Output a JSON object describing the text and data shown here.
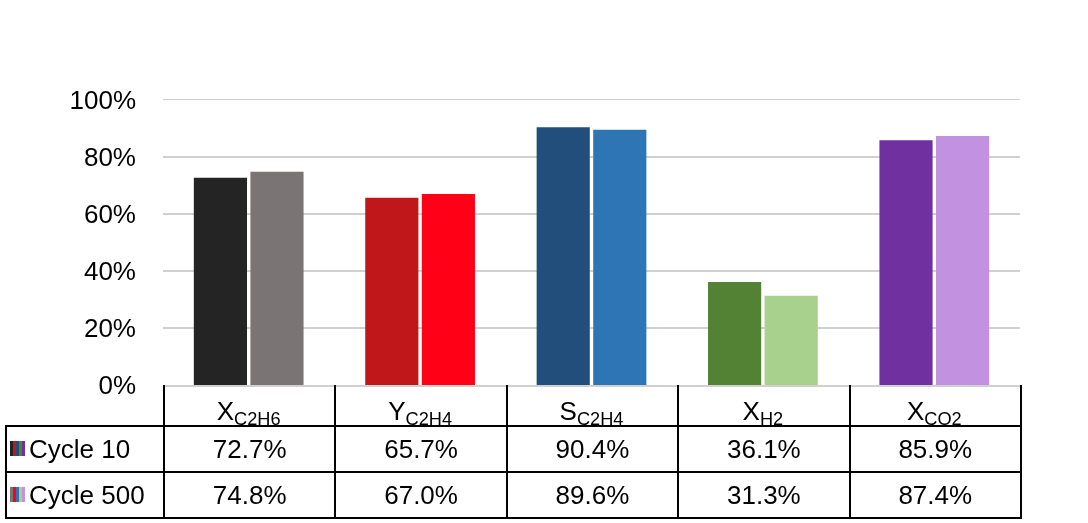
{
  "chart_data": {
    "type": "bar",
    "categories": [
      "X$_{C2H6}$",
      "Y$_{C2H4}$",
      "S$_{C2H4}$",
      "X$_{H2}$",
      "X$_{CO2}$"
    ],
    "series": [
      {
        "name": "Cycle 10",
        "colors": [
          "#242424",
          "#c0171b",
          "#224e7c",
          "#548235",
          "#7030a0"
        ],
        "values": [
          72.7,
          65.7,
          90.4,
          36.1,
          85.9
        ],
        "value_labels": [
          "72.7%",
          "65.7%",
          "90.4%",
          "36.1%",
          "85.9%"
        ]
      },
      {
        "name": "Cycle 500",
        "colors": [
          "#7a7574",
          "#ff0016",
          "#2e75b6",
          "#a9d18e",
          "#c292e1"
        ],
        "values": [
          74.8,
          67.0,
          89.6,
          31.3,
          87.4
        ],
        "value_labels": [
          "74.8%",
          "67.0%",
          "89.6%",
          "31.3%",
          "87.4%"
        ]
      }
    ],
    "ylim": [
      0,
      100
    ],
    "yticks": [
      {
        "value": 0,
        "label": "0%"
      },
      {
        "value": 20,
        "label": "20%"
      },
      {
        "value": 40,
        "label": "40%"
      },
      {
        "value": 60,
        "label": "60%"
      },
      {
        "value": 80,
        "label": "80%"
      },
      {
        "value": 100,
        "label": "100%"
      }
    ],
    "grid": "y",
    "legend": "bottom left"
  }
}
